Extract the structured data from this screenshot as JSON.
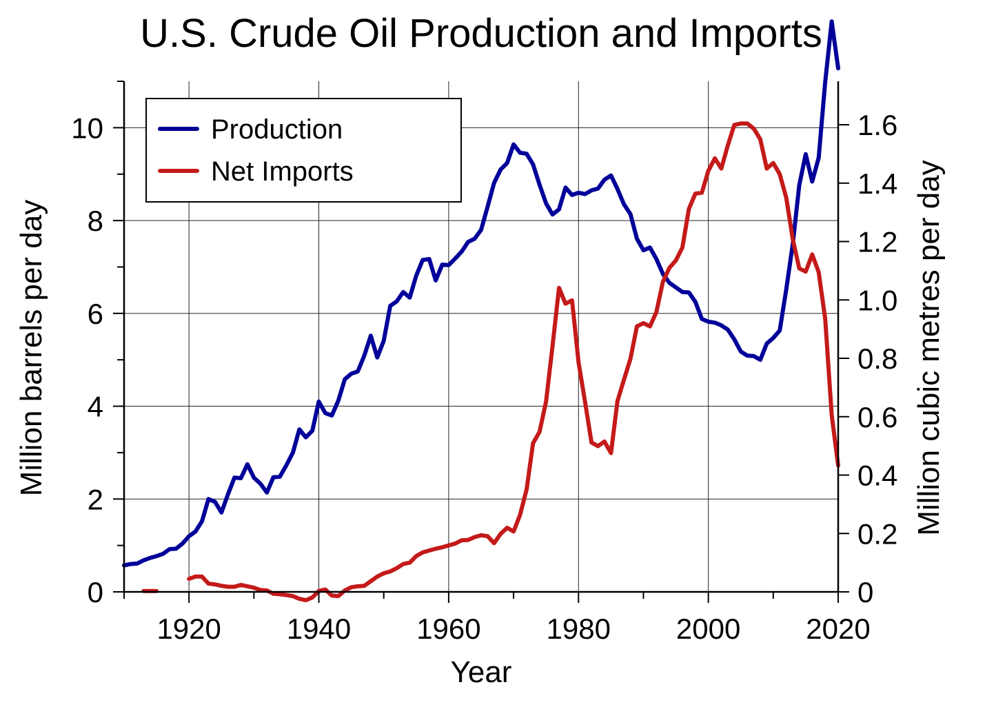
{
  "chart_data": {
    "type": "line",
    "title": "U.S. Crude Oil Production and Imports",
    "xlabel": "Year",
    "ylabel": "Million barrels per day",
    "ylabel_right": "Million cubic metres per day",
    "xlim": [
      1910,
      2020
    ],
    "ylim": [
      0,
      11
    ],
    "ylim_right": [
      0,
      1.7488
    ],
    "xticks": [
      "1920",
      "1940",
      "1960",
      "1980",
      "2000",
      "2020"
    ],
    "yticks": [
      "0",
      "2",
      "4",
      "6",
      "8",
      "10"
    ],
    "yticks_right": [
      "0",
      "0.2",
      "0.4",
      "0.6",
      "0.8",
      "1.0",
      "1.2",
      "1.4",
      "1.6"
    ],
    "grid": true,
    "legend_position": "top-left",
    "series": [
      {
        "name": "Production",
        "color": "#000099",
        "x": [
          1910,
          1911,
          1912,
          1913,
          1914,
          1915,
          1916,
          1917,
          1918,
          1919,
          1920,
          1921,
          1922,
          1923,
          1924,
          1925,
          1926,
          1927,
          1928,
          1929,
          1930,
          1931,
          1932,
          1933,
          1934,
          1935,
          1936,
          1937,
          1938,
          1939,
          1940,
          1941,
          1942,
          1943,
          1944,
          1945,
          1946,
          1947,
          1948,
          1949,
          1950,
          1951,
          1952,
          1953,
          1954,
          1955,
          1956,
          1957,
          1958,
          1959,
          1960,
          1961,
          1962,
          1963,
          1964,
          1965,
          1966,
          1967,
          1968,
          1969,
          1970,
          1971,
          1972,
          1973,
          1974,
          1975,
          1976,
          1977,
          1978,
          1979,
          1980,
          1981,
          1982,
          1983,
          1984,
          1985,
          1986,
          1987,
          1988,
          1989,
          1990,
          1991,
          1992,
          1993,
          1994,
          1995,
          1996,
          1997,
          1998,
          1999,
          2000,
          2001,
          2002,
          2003,
          2004,
          2005,
          2006,
          2007,
          2008,
          2009,
          2010,
          2011,
          2012,
          2013,
          2014,
          2015,
          2016,
          2017,
          2018,
          2019,
          2020
        ],
        "values": [
          0.57,
          0.6,
          0.61,
          0.68,
          0.73,
          0.77,
          0.82,
          0.92,
          0.93,
          1.04,
          1.2,
          1.3,
          1.52,
          2.0,
          1.94,
          1.71,
          2.1,
          2.46,
          2.45,
          2.75,
          2.46,
          2.33,
          2.14,
          2.47,
          2.48,
          2.73,
          3.0,
          3.5,
          3.33,
          3.47,
          4.1,
          3.85,
          3.8,
          4.12,
          4.58,
          4.7,
          4.75,
          5.09,
          5.52,
          5.05,
          5.41,
          6.16,
          6.26,
          6.46,
          6.34,
          6.81,
          7.15,
          7.17,
          6.71,
          7.05,
          7.04,
          7.18,
          7.33,
          7.54,
          7.61,
          7.8,
          8.3,
          8.81,
          9.1,
          9.24,
          9.64,
          9.46,
          9.44,
          9.21,
          8.77,
          8.37,
          8.13,
          8.24,
          8.71,
          8.55,
          8.6,
          8.57,
          8.65,
          8.69,
          8.88,
          8.97,
          8.68,
          8.35,
          8.14,
          7.61,
          7.36,
          7.42,
          7.17,
          6.85,
          6.66,
          6.56,
          6.46,
          6.45,
          6.25,
          5.88,
          5.82,
          5.8,
          5.74,
          5.65,
          5.44,
          5.18,
          5.09,
          5.08,
          5.0,
          5.35,
          5.47,
          5.63,
          6.52,
          7.49,
          8.76,
          9.43,
          8.84,
          9.35,
          10.99,
          12.29,
          11.28
        ]
      },
      {
        "name": "Net Imports",
        "color": "#c41a1a",
        "x": [
          1913,
          1914,
          1915,
          null,
          1920,
          1921,
          1922,
          1923,
          1924,
          1925,
          1926,
          1927,
          1928,
          1929,
          1930,
          1931,
          1932,
          1933,
          1934,
          1935,
          1936,
          1937,
          1938,
          1939,
          1940,
          1941,
          1942,
          1943,
          1944,
          1945,
          1946,
          1947,
          1948,
          1949,
          1950,
          1951,
          1952,
          1953,
          1954,
          1955,
          1956,
          1957,
          1958,
          1959,
          1960,
          1961,
          1962,
          1963,
          1964,
          1965,
          1966,
          1967,
          1968,
          1969,
          1970,
          1971,
          1972,
          1973,
          1974,
          1975,
          1976,
          1977,
          1978,
          1979,
          1980,
          1981,
          1982,
          1983,
          1984,
          1985,
          1986,
          1987,
          1988,
          1989,
          1990,
          1991,
          1992,
          1993,
          1994,
          1995,
          1996,
          1997,
          1998,
          1999,
          2000,
          2001,
          2002,
          2003,
          2004,
          2005,
          2006,
          2007,
          2008,
          2009,
          2010,
          2011,
          2012,
          2013,
          2014,
          2015,
          2016,
          2017,
          2018,
          2019,
          2020
        ],
        "values": [
          0.02,
          0.02,
          0.02,
          null,
          0.28,
          0.33,
          0.33,
          0.18,
          0.16,
          0.13,
          0.11,
          0.11,
          0.15,
          0.12,
          0.09,
          0.04,
          0.03,
          -0.04,
          -0.05,
          -0.07,
          -0.09,
          -0.15,
          -0.18,
          -0.12,
          0.02,
          0.05,
          -0.08,
          -0.09,
          0.03,
          0.1,
          0.12,
          0.13,
          0.23,
          0.33,
          0.4,
          0.44,
          0.51,
          0.6,
          0.63,
          0.77,
          0.85,
          0.89,
          0.93,
          0.96,
          1.0,
          1.04,
          1.11,
          1.12,
          1.18,
          1.22,
          1.2,
          1.05,
          1.25,
          1.38,
          1.3,
          1.66,
          2.2,
          3.2,
          3.45,
          4.1,
          5.3,
          6.55,
          6.21,
          6.28,
          4.95,
          4.1,
          3.22,
          3.14,
          3.24,
          2.99,
          4.11,
          4.57,
          5.02,
          5.72,
          5.79,
          5.72,
          6.03,
          6.68,
          6.98,
          7.14,
          7.42,
          8.25,
          8.58,
          8.6,
          9.07,
          9.34,
          9.12,
          9.62,
          10.06,
          10.09,
          10.09,
          9.98,
          9.75,
          9.12,
          9.24,
          9.0,
          8.49,
          7.6,
          6.97,
          6.9,
          7.27,
          6.89,
          5.88,
          3.81,
          2.72
        ]
      }
    ]
  },
  "legend": {
    "production_label": "Production",
    "imports_label": "Net Imports"
  }
}
